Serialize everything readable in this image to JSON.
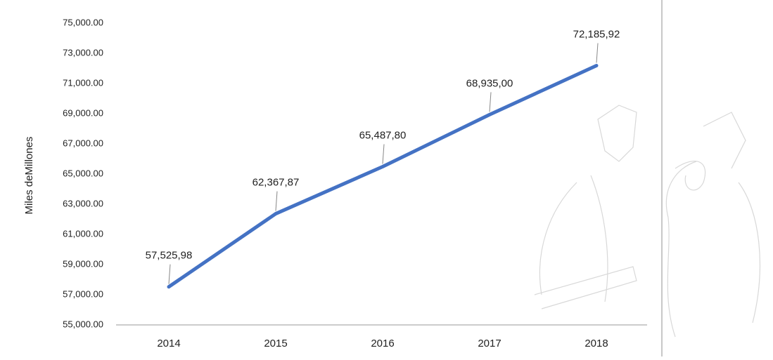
{
  "chart_data": {
    "type": "line",
    "y_axis_label": "Miles deMillones",
    "categories": [
      "2014",
      "2015",
      "2016",
      "2017",
      "2018"
    ],
    "values": [
      57525.98,
      62367.87,
      65487.8,
      68935.0,
      72185.92
    ],
    "value_labels": [
      "57,525,98",
      "62,367,87",
      "65,487,80",
      "68,935,00",
      "72,185,92"
    ],
    "color": "#4472c4",
    "ylim": [
      55000,
      75000
    ],
    "yticks": [
      {
        "value": 55000,
        "label": "55,000.00"
      },
      {
        "value": 57000,
        "label": "57,000.00"
      },
      {
        "value": 59000,
        "label": "59,000.00"
      },
      {
        "value": 61000,
        "label": "61,000.00"
      },
      {
        "value": 63000,
        "label": "63,000.00"
      },
      {
        "value": 65000,
        "label": "65,000.00"
      },
      {
        "value": 67000,
        "label": "67,000.00"
      },
      {
        "value": 69000,
        "label": "69,000.00"
      },
      {
        "value": 71000,
        "label": "71,000.00"
      },
      {
        "value": 73000,
        "label": "73,000.00"
      },
      {
        "value": 75000,
        "label": "75,000.00"
      }
    ],
    "grid": false
  }
}
